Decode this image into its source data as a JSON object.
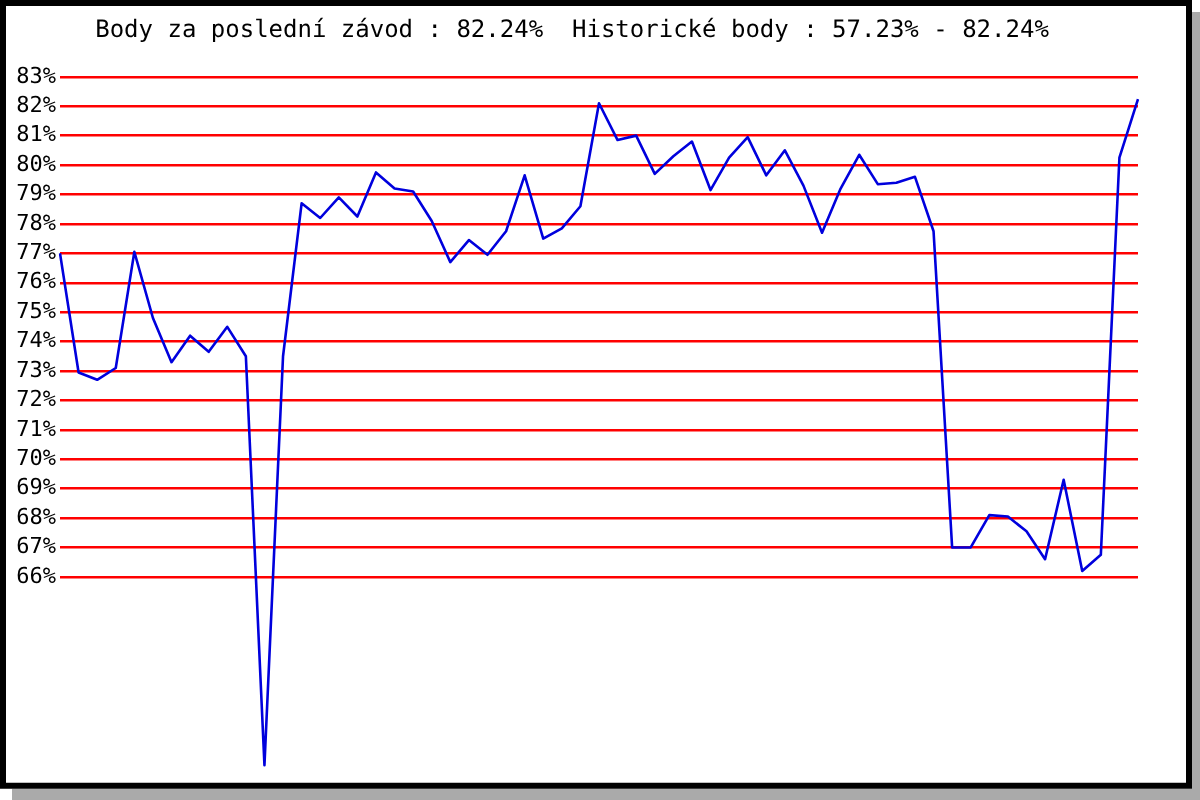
{
  "chart_data": {
    "type": "line",
    "title": "Body za poslední závod : 82.24%  Historické body : 57.23% - 82.24%",
    "categories": [
      null,
      null,
      null,
      null,
      null,
      null,
      null,
      null,
      null,
      null,
      null,
      null,
      null,
      null,
      null,
      null,
      null,
      null,
      null,
      null,
      null,
      null,
      null,
      null,
      null,
      null,
      null,
      null,
      null,
      null,
      null,
      null,
      null,
      null,
      null,
      null,
      null,
      null,
      null,
      null,
      null,
      null,
      null,
      null,
      null,
      null,
      null,
      null,
      null,
      null,
      null,
      null,
      null,
      null,
      null,
      null,
      null,
      null,
      null
    ],
    "series": [
      {
        "color": "#0000dd",
        "values": [
          77.0,
          72.95,
          72.7,
          73.1,
          77.05,
          74.8,
          73.3,
          74.2,
          73.65,
          74.5,
          73.5,
          59.6,
          73.5,
          78.7,
          78.2,
          78.9,
          78.25,
          79.75,
          79.2,
          79.1,
          78.1,
          76.7,
          77.45,
          76.95,
          77.75,
          79.65,
          77.5,
          77.85,
          78.6,
          82.1,
          80.85,
          81.0,
          79.7,
          80.3,
          80.8,
          79.15,
          80.25,
          80.95,
          79.65,
          80.5,
          79.3,
          77.7,
          79.2,
          80.35,
          79.35,
          79.4,
          79.6,
          77.75,
          67.0,
          67.0,
          68.1,
          68.05,
          67.55,
          66.6,
          69.3,
          66.2,
          66.75,
          80.25,
          82.24
        ]
      }
    ],
    "ylim": [
      59,
      83
    ],
    "yticks": [
      {
        "value": 66,
        "label": "66%"
      },
      {
        "value": 67,
        "label": "67%"
      },
      {
        "value": 68,
        "label": "68%"
      },
      {
        "value": 69,
        "label": "69%"
      },
      {
        "value": 70,
        "label": "70%"
      },
      {
        "value": 71,
        "label": "71%"
      },
      {
        "value": 72,
        "label": "72%"
      },
      {
        "value": 73,
        "label": "73%"
      },
      {
        "value": 74,
        "label": "74%"
      },
      {
        "value": 75,
        "label": "75%"
      },
      {
        "value": 76,
        "label": "76%"
      },
      {
        "value": 77,
        "label": "77%"
      },
      {
        "value": 78,
        "label": "78%"
      },
      {
        "value": 79,
        "label": "79%"
      },
      {
        "value": 80,
        "label": "80%"
      },
      {
        "value": 81,
        "label": "81%"
      },
      {
        "value": 82,
        "label": "82%"
      },
      {
        "value": 83,
        "label": "83%"
      }
    ],
    "grid": "y",
    "legend": false,
    "marker": "none",
    "line_style": "solid",
    "tick_labels": "y"
  }
}
